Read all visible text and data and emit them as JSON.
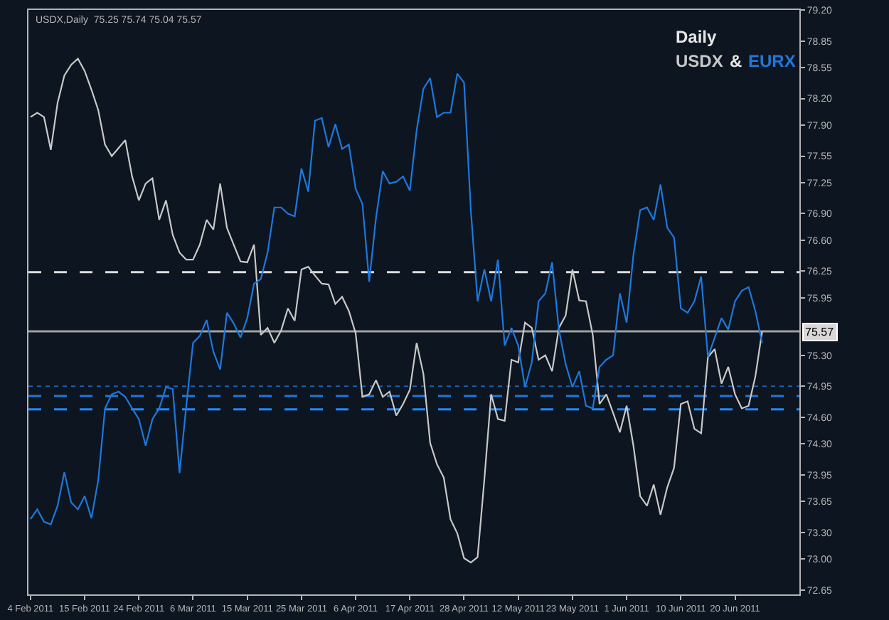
{
  "chart_data": {
    "type": "line",
    "title": "Daily",
    "annotations": [
      "USDX,Daily  75.25 75.74 75.04 75.57",
      "&"
    ],
    "categories": [
      "4 Feb 2011",
      null,
      null,
      null,
      null,
      null,
      null,
      null,
      "15 Feb 2011",
      null,
      null,
      null,
      null,
      null,
      null,
      null,
      "24 Feb 2011",
      null,
      null,
      null,
      null,
      null,
      null,
      null,
      "6 Mar 2011",
      null,
      null,
      null,
      null,
      null,
      null,
      null,
      "15 Mar 2011",
      null,
      null,
      null,
      null,
      null,
      null,
      null,
      "25 Mar 2011",
      null,
      null,
      null,
      null,
      null,
      null,
      null,
      "6 Apr 2011",
      null,
      null,
      null,
      null,
      null,
      null,
      null,
      "17 Apr 2011",
      null,
      null,
      null,
      null,
      null,
      null,
      null,
      "28 Apr 2011",
      null,
      null,
      null,
      null,
      null,
      null,
      null,
      "12 May 2011",
      null,
      null,
      null,
      null,
      null,
      null,
      null,
      "23 May 2011",
      null,
      null,
      null,
      null,
      null,
      null,
      null,
      "1 Jun 2011",
      null,
      null,
      null,
      null,
      null,
      null,
      null,
      "10 Jun 2011",
      null,
      null,
      null,
      null,
      null,
      null,
      null,
      "20 Jun 2011",
      null,
      null,
      null,
      null,
      null,
      null,
      null,
      null,
      null
    ],
    "series": [
      {
        "name": "USDX",
        "color": "#c8c8c8",
        "values": [
          77.99,
          78.04,
          77.99,
          77.62,
          78.15,
          78.46,
          78.58,
          78.65,
          78.51,
          78.3,
          78.07,
          77.68,
          77.55,
          77.64,
          77.73,
          77.32,
          77.05,
          77.24,
          77.3,
          76.83,
          77.05,
          76.66,
          76.46,
          76.38,
          76.38,
          76.55,
          76.83,
          76.72,
          77.24,
          76.74,
          76.55,
          76.36,
          76.35,
          76.55,
          75.53,
          75.61,
          75.44,
          75.58,
          75.83,
          75.69,
          76.27,
          76.3,
          76.2,
          76.11,
          76.1,
          75.88,
          75.96,
          75.8,
          75.55,
          74.83,
          74.86,
          75.02,
          74.83,
          74.89,
          74.62,
          74.75,
          74.91,
          75.44,
          75.09,
          74.31,
          74.07,
          73.92,
          73.45,
          73.29,
          73.01,
          72.96,
          73.02,
          73.9,
          74.86,
          74.58,
          74.56,
          75.25,
          75.22,
          75.67,
          75.61,
          75.25,
          75.3,
          75.12,
          75.61,
          75.75,
          76.27,
          75.92,
          75.91,
          75.53,
          74.75,
          74.86,
          74.65,
          74.43,
          74.73,
          74.28,
          73.71,
          73.6,
          73.84,
          73.5,
          73.81,
          74.03,
          74.75,
          74.78,
          74.47,
          74.42,
          75.28,
          75.37,
          74.98,
          75.17,
          74.86,
          74.7,
          74.73,
          75.06,
          75.57,
          null,
          null,
          null,
          null,
          null
        ]
      },
      {
        "name": "EURX",
        "color": "#1e78dc",
        "values": [
          73.45,
          73.56,
          73.42,
          73.39,
          73.6,
          73.98,
          73.64,
          73.56,
          73.71,
          73.46,
          73.89,
          74.7,
          74.86,
          74.89,
          74.83,
          74.7,
          74.58,
          74.28,
          74.58,
          74.7,
          74.94,
          74.92,
          73.97,
          74.73,
          75.44,
          75.52,
          75.7,
          75.34,
          75.14,
          75.78,
          75.66,
          75.5,
          75.72,
          76.11,
          76.16,
          76.46,
          76.97,
          76.97,
          76.9,
          76.87,
          77.41,
          77.15,
          77.95,
          77.98,
          77.65,
          77.91,
          77.63,
          77.68,
          77.18,
          77.01,
          76.13,
          76.85,
          77.38,
          77.24,
          77.26,
          77.32,
          77.16,
          77.84,
          78.31,
          78.43,
          77.99,
          78.04,
          78.04,
          78.48,
          78.38,
          76.94,
          75.91,
          76.27,
          75.91,
          76.38,
          75.41,
          75.61,
          75.41,
          74.94,
          75.22,
          75.91,
          76.0,
          76.35,
          75.59,
          75.2,
          74.94,
          75.12,
          74.73,
          74.7,
          75.17,
          75.25,
          75.3,
          76.0,
          75.67,
          76.43,
          76.94,
          76.97,
          76.83,
          77.23,
          76.74,
          76.63,
          75.83,
          75.78,
          75.91,
          76.19,
          75.28,
          75.5,
          75.72,
          75.59,
          75.91,
          76.03,
          76.07,
          75.8,
          75.44,
          null,
          null,
          null,
          null,
          null
        ]
      }
    ],
    "ylim": [
      72.6,
      79.2
    ],
    "yticks": [
      {
        "value": 79.2,
        "label": "79.20"
      },
      78.85,
      78.55,
      {
        "value": 78.2,
        "label": "78.20"
      },
      {
        "value": 77.9,
        "label": "77.90"
      },
      77.55,
      77.25,
      {
        "value": 76.9,
        "label": "76.90"
      },
      {
        "value": 76.6,
        "label": "76.60"
      },
      76.25,
      75.95,
      {
        "value": 75.3,
        "label": "75.30"
      },
      74.95,
      {
        "value": 74.6,
        "label": "74.60"
      },
      {
        "value": 74.3,
        "label": "74.30"
      },
      73.95,
      73.65,
      {
        "value": 73.3,
        "label": "73.30"
      },
      {
        "value": 73.0,
        "label": "73.00"
      },
      72.65
    ],
    "ref_lines": [
      {
        "axis": "y",
        "value": 75.57,
        "label": "75.57",
        "color": "#a0a0a0",
        "line_style": "solid"
      },
      {
        "axis": "y",
        "value": 76.24,
        "color": "#dcdcdc",
        "line_style": "dashed"
      },
      {
        "axis": "y",
        "value": 74.69,
        "color": "#1e8cff",
        "line_style": "dashed"
      },
      {
        "axis": "y",
        "value": 74.84,
        "color": "#1e78dc",
        "line_style": "dashed"
      },
      {
        "axis": "y",
        "value": 74.95,
        "color": "#1e60b0",
        "line_style": "dotted"
      }
    ],
    "grid": false,
    "legend": false,
    "marker": "none",
    "line_style": "solid"
  }
}
